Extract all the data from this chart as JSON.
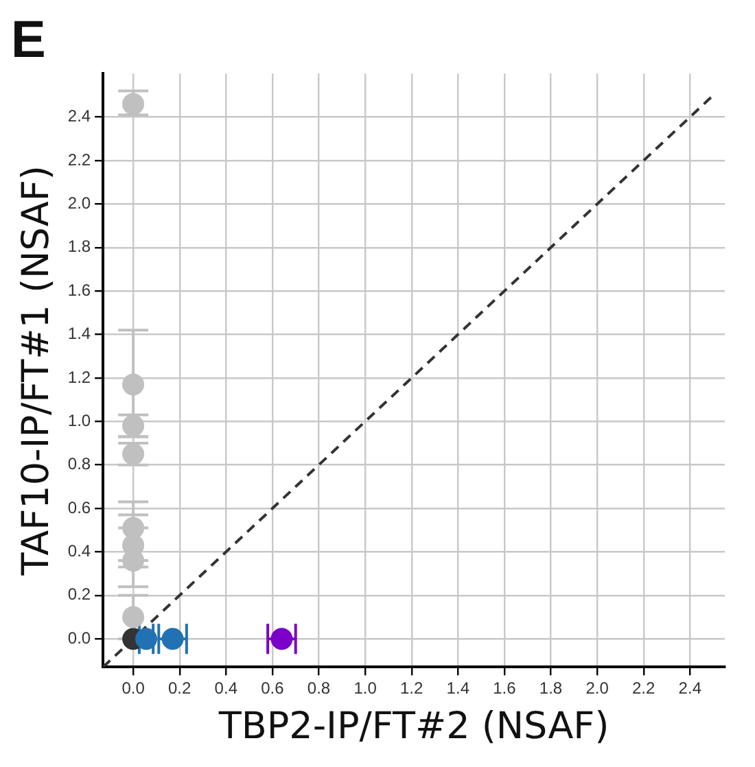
{
  "chart_data": {
    "type": "scatter",
    "title": "E",
    "xlabel": "TBP2-IP/FT#2 (NSAF)",
    "ylabel": "TAF10-IP/FT#1 (NSAF)",
    "xlim": [
      -0.13,
      2.55
    ],
    "ylim": [
      -0.13,
      2.6
    ],
    "xticks": [
      {
        "value": 0,
        "label": "0.0"
      },
      0.2,
      0.4,
      0.6,
      0.8,
      {
        "value": 1,
        "label": "1.0"
      },
      1.2,
      1.4,
      1.6,
      1.8,
      {
        "value": 2,
        "label": "2.0"
      },
      2.2,
      2.4
    ],
    "yticks": [
      {
        "value": 0,
        "label": "0.0"
      },
      0.2,
      0.4,
      0.6,
      0.8,
      {
        "value": 1,
        "label": "1.0"
      },
      1.2,
      1.4,
      1.6,
      1.8,
      {
        "value": 2,
        "label": "2.0"
      },
      2.2,
      2.4
    ],
    "grid": true,
    "marker": "circle",
    "series": [
      {
        "type": "line",
        "color": "#333333",
        "line_style": "dashed",
        "marker": "none",
        "x": [
          -0.13,
          2.5
        ],
        "values": [
          -0.13,
          2.5
        ]
      },
      {
        "color": "#c0c0c0",
        "x": [
          0,
          0,
          0,
          0,
          0,
          0,
          0,
          0
        ],
        "values": [
          2.46,
          1.17,
          0.98,
          0.85,
          0.51,
          0.43,
          0.36,
          0.1
        ],
        "errors": [
          [
            2.41,
            2.52
          ],
          [
            0.93,
            1.42
          ],
          [
            0.93,
            1.03
          ],
          [
            0.8,
            0.9
          ],
          [
            0.51,
            0.63
          ],
          [
            0.33,
            0.57
          ],
          [
            0.24,
            0.36
          ],
          [
            0,
            0.2
          ]
        ]
      },
      {
        "color": "#2271b2",
        "x": [
          0.056,
          0.17
        ],
        "values": [
          0,
          0
        ],
        "xerrors": [
          0.03,
          [
            0.11,
            0.23
          ]
        ]
      },
      {
        "color": "#7b00c8",
        "x": [
          0.64
        ],
        "values": [
          0
        ],
        "xerrors": [
          [
            0.58,
            0.7
          ]
        ]
      },
      {
        "color": "#333333",
        "x": [
          0
        ],
        "values": [
          0
        ]
      }
    ]
  }
}
